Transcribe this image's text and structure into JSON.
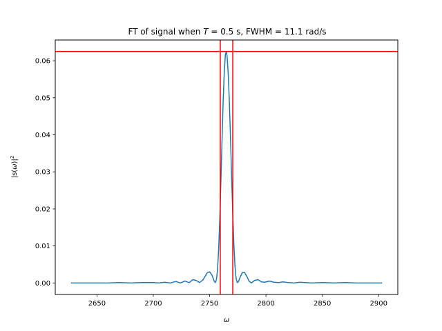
{
  "chart_data": {
    "type": "line",
    "title_parts": {
      "prefix": "FT of signal when ",
      "var": "T",
      "middle": " = 0.5 s, FWHM = 11.1 rad/s"
    },
    "xlabel": "ω",
    "ylabel_parts": {
      "a": "|s(",
      "var": "ω",
      "b": ")|",
      "sup": "2"
    },
    "xlim": [
      2613,
      2917
    ],
    "ylim": [
      -0.0031,
      0.0656
    ],
    "x_ticks": [
      2650,
      2700,
      2750,
      2800,
      2850,
      2900
    ],
    "x_tick_labels": [
      "2650",
      "2700",
      "2750",
      "2800",
      "2850",
      "2900"
    ],
    "y_ticks": [
      0.0,
      0.01,
      0.02,
      0.03,
      0.04,
      0.05,
      0.06
    ],
    "y_tick_labels": [
      "0.00",
      "0.01",
      "0.02",
      "0.03",
      "0.04",
      "0.05",
      "0.06"
    ],
    "grid": false,
    "series": [
      {
        "color": "#1f77b4",
        "x": [
          2627,
          2640,
          2650,
          2660,
          2670,
          2680,
          2690,
          2700,
          2705,
          2710,
          2715,
          2720,
          2724,
          2728,
          2732,
          2735,
          2738,
          2741,
          2744,
          2746,
          2748,
          2750,
          2752,
          2754,
          2755,
          2756,
          2757,
          2758,
          2759,
          2760,
          2761,
          2762,
          2763,
          2764,
          2764.8,
          2765.5,
          2766.5,
          2767.5,
          2768.5,
          2769.5,
          2770.5,
          2771.5,
          2772.5,
          2773.5,
          2774.5,
          2775.5,
          2777,
          2779,
          2781,
          2783,
          2785,
          2787,
          2790,
          2793,
          2796,
          2799,
          2803,
          2807,
          2811,
          2815,
          2820,
          2825,
          2830,
          2840,
          2850,
          2860,
          2870,
          2880,
          2890,
          2903
        ],
        "y": [
          0.0,
          0.0,
          0.0,
          0.0,
          0.0001,
          0.0,
          0.0001,
          0.0001,
          0.0,
          0.0002,
          0.0,
          0.0004,
          0.0,
          0.0005,
          0.0001,
          0.0009,
          0.0007,
          0.0001,
          0.0008,
          0.0018,
          0.0028,
          0.003,
          0.0022,
          0.0005,
          0.0001,
          0.0008,
          0.0035,
          0.009,
          0.017,
          0.0275,
          0.0385,
          0.049,
          0.057,
          0.0617,
          0.0625,
          0.0612,
          0.0565,
          0.049,
          0.0395,
          0.029,
          0.019,
          0.0105,
          0.0045,
          0.0012,
          0.0001,
          0.0003,
          0.0015,
          0.0028,
          0.0028,
          0.0018,
          0.0005,
          0.0,
          0.0007,
          0.0009,
          0.0003,
          0.0002,
          0.0005,
          0.0002,
          0.0001,
          0.0003,
          0.0001,
          0.0,
          0.0002,
          0.0,
          0.0001,
          0.0,
          0.0001,
          0.0,
          0.0,
          0.0
        ]
      }
    ],
    "hlines": [
      {
        "y": 0.0625,
        "color": "#ff0000"
      }
    ],
    "vlines": [
      {
        "x": 2759.45,
        "color": "#ff0000"
      },
      {
        "x": 2770.55,
        "color": "#ff0000"
      }
    ]
  }
}
